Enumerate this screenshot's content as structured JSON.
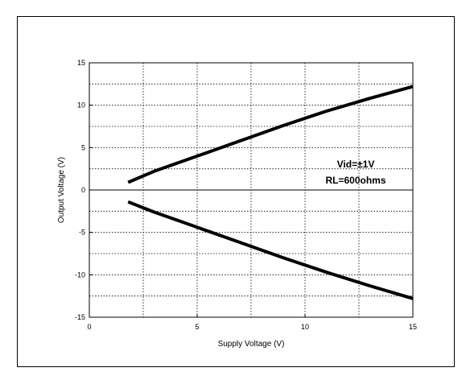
{
  "chart_data": {
    "type": "line",
    "xlabel": "Supply Voltage (V)",
    "ylabel": "Output Voltage (V)",
    "xlim": [
      0,
      15
    ],
    "ylim": [
      -15,
      15
    ],
    "xticks": [
      "0",
      "5",
      "10",
      "15"
    ],
    "yticks": [
      "15",
      "10",
      "5",
      "0",
      "-5",
      "-10",
      "-15"
    ],
    "xtick_values": [
      0,
      5,
      10,
      15
    ],
    "ytick_values": [
      15,
      10,
      5,
      0,
      -5,
      -10,
      -15
    ],
    "grid": true,
    "annotations": [
      "Vid=±1V",
      "RL=600ohms"
    ],
    "series": [
      {
        "x": [
          1.8,
          3,
          5,
          7,
          9,
          11,
          13,
          15
        ],
        "y": [
          0.9,
          2.2,
          4.0,
          5.8,
          7.6,
          9.3,
          10.8,
          12.2
        ]
      },
      {
        "x": [
          1.8,
          3,
          5,
          7,
          9,
          11,
          13,
          15
        ],
        "y": [
          -1.4,
          -2.6,
          -4.4,
          -6.2,
          -8.0,
          -9.7,
          -11.3,
          -12.8
        ]
      }
    ],
    "line_color": "#000000"
  }
}
